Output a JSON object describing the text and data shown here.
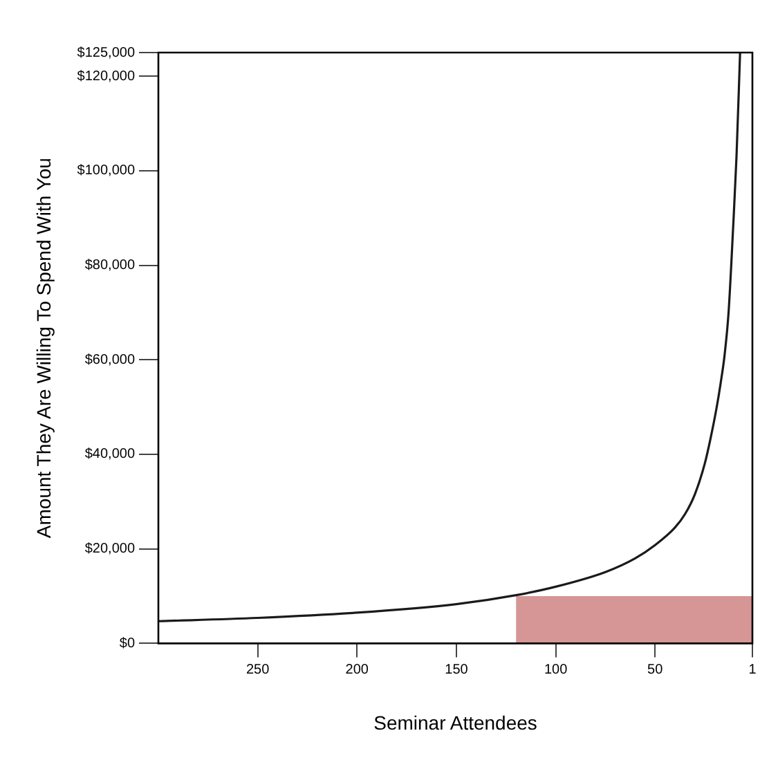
{
  "chart_data": {
    "type": "line",
    "xlabel": "Seminar Attendees",
    "ylabel": "Amount They Are Willing To Spend With You",
    "xlim": [
      300,
      1
    ],
    "xticks": [
      250,
      200,
      150,
      100,
      50,
      1
    ],
    "ylim": [
      0,
      125000
    ],
    "yticks": [
      {
        "value": 0,
        "label": "$0"
      },
      {
        "value": 20000,
        "label": "$20,000"
      },
      {
        "value": 40000,
        "label": "$40,000"
      },
      {
        "value": 60000,
        "label": "$60,000"
      },
      {
        "value": 80000,
        "label": "$80,000"
      },
      {
        "value": 100000,
        "label": "$100,000"
      },
      {
        "value": 120000,
        "label": "$120,000"
      },
      {
        "value": 125000,
        "label": "$125,000"
      }
    ],
    "grid": false,
    "legend": false,
    "marker": "none",
    "series": [
      {
        "color": "#1a1a1a",
        "x": [
          300,
          250,
          200,
          150,
          120,
          100,
          75,
          60,
          50,
          40,
          35,
          30,
          25,
          22,
          19,
          17,
          15,
          13,
          10.7,
          9,
          7.2
        ],
        "values": [
          4700,
          5400,
          6500,
          8300,
          10200,
          12000,
          15100,
          18000,
          20800,
          24500,
          27300,
          31500,
          38000,
          43500,
          49900,
          55000,
          61000,
          70000,
          88000,
          103000,
          125000
        ]
      },
      {
        "type": "area",
        "color": "#d69696",
        "x": [
          120,
          1
        ],
        "values": [
          10000,
          10000
        ]
      }
    ]
  }
}
